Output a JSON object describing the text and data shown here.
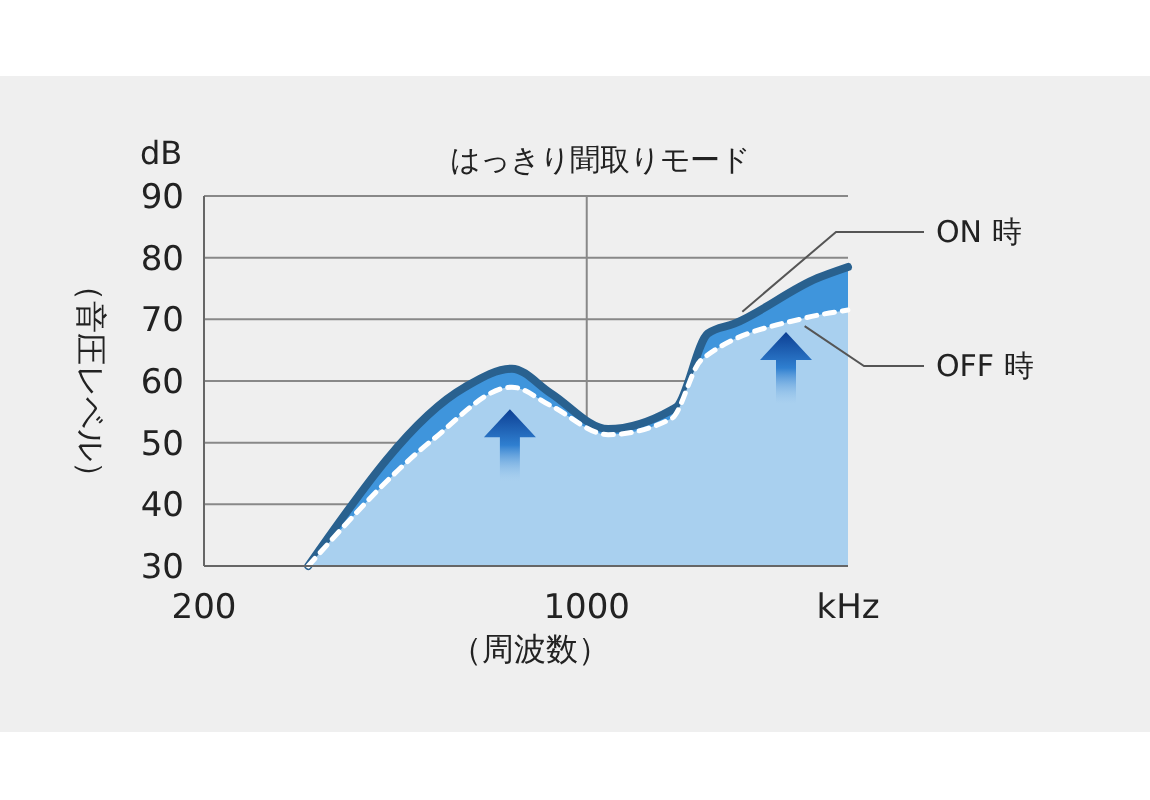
{
  "chart_data": {
    "type": "area",
    "title": "はっきり聞取りモード",
    "xlabel": "（周波数）",
    "ylabel": "（音圧レベル）",
    "annotations": [
      "dB"
    ],
    "log": "x",
    "xlim": [
      200,
      3000
    ],
    "xticks": [
      200,
      1000,
      {
        "value": 3000,
        "label": "kHz"
      }
    ],
    "ylim": [
      30,
      90
    ],
    "yticks": [
      30,
      40,
      50,
      60,
      70,
      80,
      90
    ],
    "grid": true,
    "series": [
      {
        "name": "ON 時",
        "color": "#3f95dc",
        "line_style": "solid",
        "x": [
          310,
          599,
          730,
          860,
          1094,
          1428,
          1460,
          1664,
          1860,
          2640,
          3000
        ],
        "values": [
          30,
          59,
          62,
          58,
          52.2,
          55.3,
          55.8,
          67.7,
          69.3,
          76.7,
          78.5
        ]
      },
      {
        "name": "OFF 時",
        "color": "#a9d0ef",
        "line_style": "dashed",
        "x": [
          310,
          522,
          730,
          860,
          1094,
          1428,
          1618,
          2500,
          3000
        ],
        "values": [
          30,
          50.4,
          59,
          56,
          51.3,
          53.9,
          63.4,
          70.2,
          71.5
        ]
      }
    ]
  }
}
